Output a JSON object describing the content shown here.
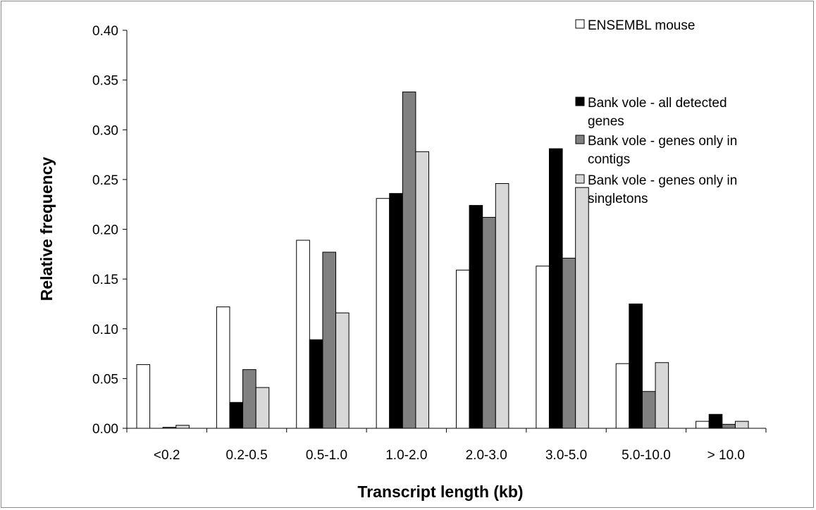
{
  "chart_data": {
    "type": "bar",
    "title": "",
    "xlabel": "Transcript  length (kb)",
    "ylabel": "Relative frequency",
    "ylim": [
      0,
      0.4
    ],
    "yticks": [
      "0.00",
      "0.05",
      "0.10",
      "0.15",
      "0.20",
      "0.25",
      "0.30",
      "0.35",
      "0.40"
    ],
    "grid": false,
    "legend_position": "top-right",
    "categories": [
      "<0.2",
      "0.2-0.5",
      "0.5-1.0",
      "1.0-2.0",
      "2.0-3.0",
      "3.0-5.0",
      "5.0-10.0",
      "> 10.0"
    ],
    "series": [
      {
        "name": "ENSEMBL mouse",
        "color": "#ffffff",
        "values": [
          0.064,
          0.122,
          0.189,
          0.231,
          0.159,
          0.163,
          0.065,
          0.007
        ]
      },
      {
        "name": "Bank vole - all detected genes",
        "color": "#000000",
        "values": [
          0.0,
          0.026,
          0.089,
          0.236,
          0.224,
          0.281,
          0.125,
          0.014
        ]
      },
      {
        "name": "Bank vole - genes only in contigs",
        "color": "#808080",
        "values": [
          0.001,
          0.059,
          0.177,
          0.338,
          0.212,
          0.171,
          0.037,
          0.004
        ]
      },
      {
        "name": "Bank vole - genes only in singletons",
        "color": "#d8d8d8",
        "values": [
          0.003,
          0.041,
          0.116,
          0.278,
          0.246,
          0.242,
          0.066,
          0.007
        ]
      }
    ],
    "legend_lines": [
      [
        "ENSEMBL mouse"
      ],
      [
        "Bank vole - all detected",
        "genes"
      ],
      [
        "Bank vole - genes only in",
        "contigs"
      ],
      [
        "Bank vole - genes only in",
        "singletons"
      ]
    ]
  }
}
